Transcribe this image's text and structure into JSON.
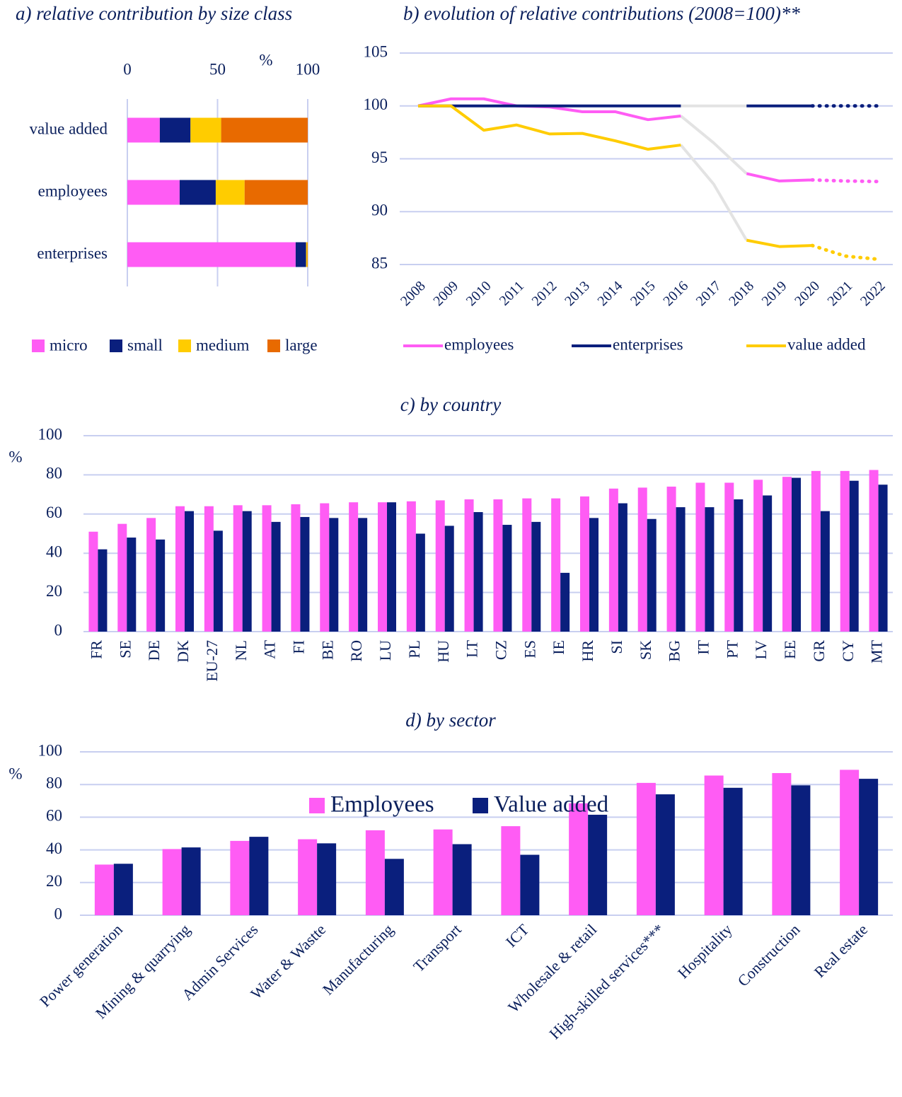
{
  "chart_data": [
    {
      "type": "stacked_hbar",
      "title": "a) relative contribution by size class",
      "xlabel": "%",
      "categories": [
        "value added",
        "employees",
        "enterprises"
      ],
      "series": [
        {
          "name": "micro",
          "color": "#ff5cf4",
          "values": [
            18,
            29,
            93.3
          ]
        },
        {
          "name": "small",
          "color": "#0a1f7d",
          "values": [
            17,
            20,
            5.8
          ]
        },
        {
          "name": "medium",
          "color": "#ffcc00",
          "values": [
            17,
            16,
            0.7
          ]
        },
        {
          "name": "large",
          "color": "#e86a00",
          "values": [
            48,
            35,
            0.2
          ]
        }
      ],
      "xlim": [
        0,
        100
      ],
      "xticks": [
        0,
        50,
        100
      ],
      "grid": true,
      "legend": "bottom"
    },
    {
      "type": "line",
      "title": "b) evolution of relative contributions (2008=100)**",
      "categories": [
        "2008",
        "2009",
        "2010",
        "2011",
        "2012",
        "2013",
        "2014",
        "2015",
        "2016",
        "2017",
        "2018",
        "2019",
        "2020",
        "2021",
        "2022"
      ],
      "series": [
        {
          "name": "employees",
          "color": "#ff5cf4",
          "values": [
            100,
            100.67,
            100.67,
            100,
            99.9,
            99.45,
            99.45,
            98.7,
            99.05,
            96.5,
            93.6,
            92.9,
            93.0,
            92.9,
            92.85
          ]
        },
        {
          "name": "enterprises",
          "color": "#0a1f7d",
          "values": [
            100,
            100,
            100,
            100,
            100,
            100,
            100,
            100,
            100,
            100,
            100,
            100,
            100,
            100,
            100
          ]
        },
        {
          "name": "value added",
          "color": "#ffcc00",
          "values": [
            100,
            100,
            97.7,
            98.2,
            97.35,
            97.4,
            96.7,
            95.9,
            96.3,
            92.6,
            87.3,
            86.7,
            86.8,
            85.8,
            85.5
          ]
        }
      ],
      "segment_styles": [
        "solid",
        "solid",
        "solid",
        "solid",
        "solid",
        "solid",
        "solid",
        "solid",
        "break",
        "break",
        "solid",
        "solid",
        "dotted",
        "dotted"
      ],
      "break_color": "#e3e3e3",
      "ylim": [
        85,
        105
      ],
      "yticks": [
        85,
        90,
        95,
        100,
        105
      ],
      "grid": true,
      "legend": "bottom"
    },
    {
      "type": "bar",
      "title": "c) by country",
      "ylabel": "%",
      "categories": [
        "FR",
        "SE",
        "DE",
        "DK",
        "EU-27",
        "NL",
        "AT",
        "FI",
        "BE",
        "RO",
        "LU",
        "PL",
        "HU",
        "LT",
        "CZ",
        "ES",
        "IE",
        "HR",
        "SI",
        "SK",
        "BG",
        "IT",
        "PT",
        "LV",
        "EE",
        "GR",
        "CY",
        "MT"
      ],
      "series": [
        {
          "color": "#ff5cf4",
          "values": [
            51,
            55,
            58,
            64,
            64,
            64.5,
            64.5,
            65,
            65.5,
            66,
            66,
            66.5,
            67,
            67.5,
            67.5,
            68,
            68,
            69,
            73,
            73.5,
            74,
            76,
            76,
            77.5,
            79,
            82,
            82,
            82.5
          ]
        },
        {
          "color": "#0a1f7d",
          "values": [
            42,
            48,
            47,
            61.5,
            51.5,
            61.5,
            56,
            58.5,
            58,
            58,
            66,
            50,
            54,
            61,
            54.5,
            56,
            30,
            58,
            65.5,
            57.5,
            63.5,
            63.5,
            67.5,
            69.5,
            78.5,
            61.5,
            77,
            75
          ]
        }
      ],
      "ylim": [
        0,
        100
      ],
      "yticks": [
        0,
        20,
        40,
        60,
        80,
        100
      ],
      "grid": true
    },
    {
      "type": "bar",
      "title": "d) by sector",
      "ylabel": "%",
      "categories": [
        "Power generation",
        "Mining & quarrying",
        "Admin Services",
        "Water & Wastte",
        "Manufacturing",
        "Transport",
        "ICT",
        "Wholesale & retail",
        "High-skilled services***",
        "Hospitality",
        "Construction",
        "Real estate"
      ],
      "series": [
        {
          "name": "Employees",
          "color": "#ff5cf4",
          "values": [
            31,
            40.5,
            45.5,
            46.5,
            52,
            52.5,
            54.5,
            68.5,
            81,
            85.5,
            87,
            89
          ]
        },
        {
          "name": "Value added",
          "color": "#0a1f7d",
          "values": [
            31.5,
            41.5,
            48,
            44,
            34.5,
            43.5,
            37,
            61.5,
            74,
            78,
            79.5,
            83.5
          ]
        }
      ],
      "ylim": [
        0,
        100
      ],
      "yticks": [
        0,
        20,
        40,
        60,
        80,
        100
      ],
      "grid": true,
      "legend": "bottom"
    }
  ]
}
